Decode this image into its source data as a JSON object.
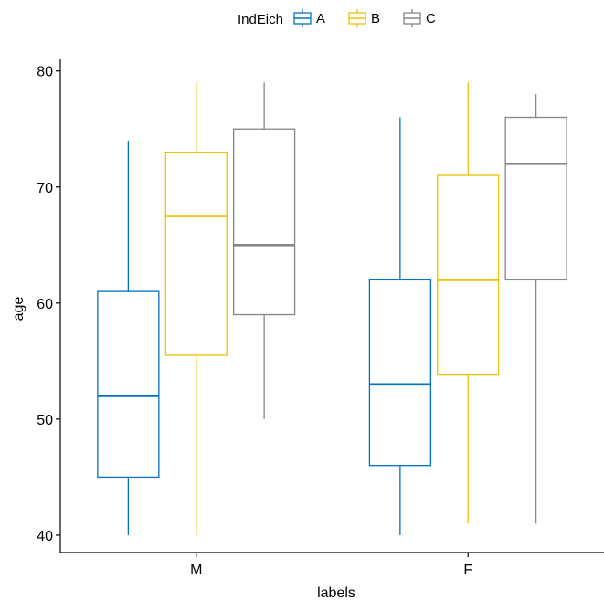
{
  "chart_data": {
    "type": "boxplot",
    "xlabel": "labels",
    "ylabel": "age",
    "categories": [
      "M",
      "F"
    ],
    "ylim": [
      38.5,
      81
    ],
    "y_ticks": [
      40,
      50,
      60,
      70,
      80
    ],
    "grid": false,
    "legend": {
      "title": "IndEich",
      "position": "top",
      "entries": [
        "A",
        "B",
        "C"
      ]
    },
    "series": [
      {
        "name": "A",
        "color": "#0073C2",
        "boxes": [
          {
            "category": "M",
            "min": 40,
            "q1": 45,
            "median": 52,
            "q3": 61,
            "max": 74
          },
          {
            "category": "F",
            "min": 40,
            "q1": 46,
            "median": 53,
            "q3": 62,
            "max": 76
          }
        ]
      },
      {
        "name": "B",
        "color": "#EFC000",
        "boxes": [
          {
            "category": "M",
            "min": 40,
            "q1": 55.5,
            "median": 67.5,
            "q3": 73,
            "max": 79
          },
          {
            "category": "F",
            "min": 41,
            "q1": 53.8,
            "median": 62,
            "q3": 71,
            "max": 79
          }
        ]
      },
      {
        "name": "C",
        "color": "#868686",
        "boxes": [
          {
            "category": "M",
            "min": 50,
            "q1": 59,
            "median": 65,
            "q3": 75,
            "max": 79
          },
          {
            "category": "F",
            "min": 41,
            "q1": 62,
            "median": 72,
            "q3": 76,
            "max": 78
          }
        ]
      }
    ]
  }
}
